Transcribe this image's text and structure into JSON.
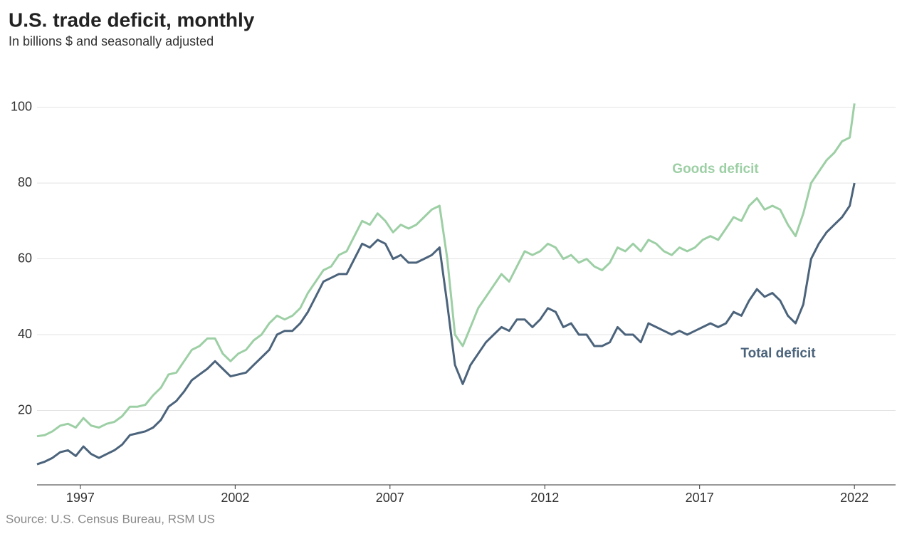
{
  "chart_data": {
    "type": "line",
    "title": "U.S. trade deficit, monthly",
    "subtitle": "In billions $ and seasonally adjusted",
    "source": "Source: U.S. Census Bureau, RSM US",
    "x": [
      1995.6,
      1995.85,
      1996.1,
      1996.35,
      1996.6,
      1996.85,
      1997.1,
      1997.35,
      1997.6,
      1997.85,
      1998.1,
      1998.35,
      1998.6,
      1998.85,
      1999.1,
      1999.35,
      1999.6,
      1999.85,
      2000.1,
      2000.35,
      2000.6,
      2000.85,
      2001.1,
      2001.35,
      2001.6,
      2001.85,
      2002.1,
      2002.35,
      2002.6,
      2002.85,
      2003.1,
      2003.35,
      2003.6,
      2003.85,
      2004.1,
      2004.35,
      2004.6,
      2004.85,
      2005.1,
      2005.35,
      2005.6,
      2005.85,
      2006.1,
      2006.35,
      2006.6,
      2006.85,
      2007.1,
      2007.35,
      2007.6,
      2007.85,
      2008.1,
      2008.35,
      2008.6,
      2008.85,
      2009.1,
      2009.35,
      2009.6,
      2009.85,
      2010.1,
      2010.35,
      2010.6,
      2010.85,
      2011.1,
      2011.35,
      2011.6,
      2011.85,
      2012.1,
      2012.35,
      2012.6,
      2012.85,
      2013.1,
      2013.35,
      2013.6,
      2013.85,
      2014.1,
      2014.35,
      2014.6,
      2014.85,
      2015.1,
      2015.35,
      2015.6,
      2015.85,
      2016.1,
      2016.35,
      2016.6,
      2016.85,
      2017.1,
      2017.35,
      2017.6,
      2017.85,
      2018.1,
      2018.35,
      2018.6,
      2018.85,
      2019.1,
      2019.35,
      2019.6,
      2019.85,
      2020.1,
      2020.35,
      2020.6,
      2020.85,
      2021.1,
      2021.35,
      2021.6,
      2021.85,
      2022.0
    ],
    "series": [
      {
        "name": "Goods deficit",
        "color": "#9dcfa5",
        "values": [
          13.2,
          13.5,
          14.5,
          16,
          16.5,
          15.5,
          18,
          16,
          15.5,
          16.5,
          17,
          18.5,
          21,
          21,
          21.5,
          24,
          26,
          29.5,
          30,
          33,
          36,
          37,
          39,
          39,
          35,
          33,
          35,
          36,
          38.5,
          40,
          43,
          45,
          44,
          45,
          47,
          51,
          54,
          57,
          58,
          61,
          62,
          66,
          70,
          69,
          72,
          70,
          67,
          69,
          68,
          69,
          71,
          73,
          74,
          60,
          40,
          37,
          42,
          47,
          50,
          53,
          56,
          54,
          58,
          62,
          61,
          62,
          64,
          63,
          60,
          61,
          59,
          60,
          58,
          57,
          59,
          63,
          62,
          64,
          62,
          65,
          64,
          62,
          61,
          63,
          62,
          63,
          65,
          66,
          65,
          68,
          71,
          70,
          74,
          76,
          73,
          74,
          73,
          69,
          66,
          72,
          80,
          83,
          86,
          88,
          91,
          92,
          101
        ]
      },
      {
        "name": "Total deficit",
        "color": "#4b637b",
        "values": [
          5.8,
          6.5,
          7.5,
          9,
          9.5,
          8,
          10.5,
          8.5,
          7.5,
          8.5,
          9.5,
          11,
          13.5,
          14,
          14.5,
          15.5,
          17.5,
          21,
          22.5,
          25,
          28,
          29.5,
          31,
          33,
          31,
          29,
          29.5,
          30,
          32,
          34,
          36,
          40,
          41,
          41,
          43,
          46,
          50,
          54,
          55,
          56,
          56,
          60,
          64,
          63,
          65,
          64,
          60,
          61,
          59,
          59,
          60,
          61,
          63,
          48,
          32,
          27,
          32,
          35,
          38,
          40,
          42,
          41,
          44,
          44,
          42,
          44,
          47,
          46,
          42,
          43,
          40,
          40,
          37,
          37,
          38,
          42,
          40,
          40,
          38,
          43,
          42,
          41,
          40,
          41,
          40,
          41,
          42,
          43,
          42,
          43,
          46,
          45,
          49,
          52,
          50,
          51,
          49,
          45,
          43,
          48,
          60,
          64,
          67,
          69,
          71,
          74,
          80
        ]
      }
    ],
    "xlim": [
      1995.6,
      2023.33
    ],
    "xticks": [
      1997,
      2002,
      2007,
      2012,
      2017,
      2022
    ],
    "ylim": [
      0,
      108
    ],
    "yticks": [
      20,
      40,
      60,
      80,
      100
    ],
    "grid": true
  }
}
